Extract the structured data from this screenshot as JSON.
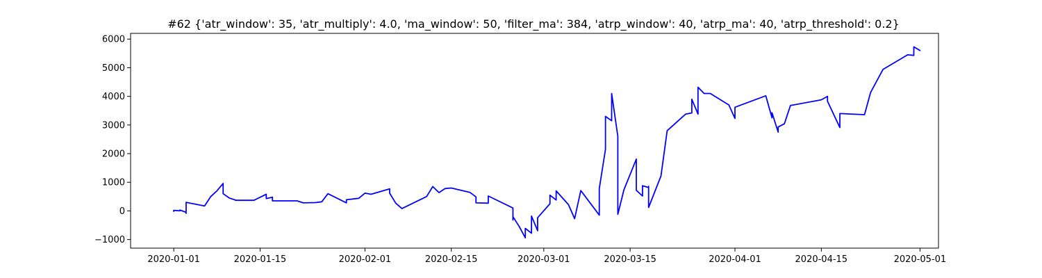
{
  "chart_data": {
    "type": "line",
    "title": "#62 {'atr_window': 35, 'atr_multiply': 4.0, 'ma_window': 50, 'filter_ma': 384, 'atrp_window': 40, 'atrp_ma': 40, 'atrp_threshold': 0.2}",
    "xlabel": "",
    "ylabel": "",
    "xlim": [
      "2019-12-25",
      "2020-05-04"
    ],
    "ylim": [
      -1300,
      6200
    ],
    "grid": false,
    "color": "#0000ff",
    "xticks": [
      "2020-01-01",
      "2020-01-15",
      "2020-02-01",
      "2020-02-15",
      "2020-03-01",
      "2020-03-15",
      "2020-04-01",
      "2020-04-15",
      "2020-05-01"
    ],
    "yticks": [
      -1000,
      0,
      1000,
      2000,
      3000,
      4000,
      5000,
      6000
    ],
    "ytick_labels": [
      "−1000",
      "0",
      "1000",
      "2000",
      "3000",
      "4000",
      "5000",
      "6000"
    ],
    "series": [
      {
        "points": [
          [
            "2020-01-01",
            -30
          ],
          [
            "2020-01-01",
            20
          ],
          [
            "2020-01-02",
            0
          ],
          [
            "2020-01-02",
            30
          ],
          [
            "2020-01-03",
            -50
          ],
          [
            "2020-01-03",
            20
          ],
          [
            "2020-01-03",
            -90
          ],
          [
            "2020-01-03",
            300
          ],
          [
            "2020-01-06",
            170
          ],
          [
            "2020-01-07",
            500
          ],
          [
            "2020-01-08",
            700
          ],
          [
            "2020-01-09",
            960
          ],
          [
            "2020-01-09",
            600
          ],
          [
            "2020-01-10",
            450
          ],
          [
            "2020-01-11",
            380
          ],
          [
            "2020-01-11",
            370
          ],
          [
            "2020-01-14",
            370
          ],
          [
            "2020-01-16",
            580
          ],
          [
            "2020-01-16",
            430
          ],
          [
            "2020-01-17",
            480
          ],
          [
            "2020-01-17",
            350
          ],
          [
            "2020-01-21",
            350
          ],
          [
            "2020-01-22",
            280
          ],
          [
            "2020-01-24",
            290
          ],
          [
            "2020-01-25",
            320
          ],
          [
            "2020-01-26",
            600
          ],
          [
            "2020-01-29",
            280
          ],
          [
            "2020-01-29",
            390
          ],
          [
            "2020-01-31",
            440
          ],
          [
            "2020-02-01",
            620
          ],
          [
            "2020-02-02",
            580
          ],
          [
            "2020-02-05",
            770
          ],
          [
            "2020-02-05",
            620
          ],
          [
            "2020-02-06",
            270
          ],
          [
            "2020-02-07",
            80
          ],
          [
            "2020-02-11",
            500
          ],
          [
            "2020-02-12",
            850
          ],
          [
            "2020-02-13",
            640
          ],
          [
            "2020-02-14",
            780
          ],
          [
            "2020-02-15",
            800
          ],
          [
            "2020-02-18",
            650
          ],
          [
            "2020-02-19",
            490
          ],
          [
            "2020-02-19",
            280
          ],
          [
            "2020-02-21",
            270
          ],
          [
            "2020-02-21",
            520
          ],
          [
            "2020-02-25",
            100
          ],
          [
            "2020-02-25",
            -320
          ],
          [
            "2020-02-25",
            -200
          ],
          [
            "2020-02-26",
            -540
          ],
          [
            "2020-02-27",
            -940
          ],
          [
            "2020-02-27",
            -610
          ],
          [
            "2020-02-28",
            -780
          ],
          [
            "2020-02-28",
            -180
          ],
          [
            "2020-02-29",
            -690
          ],
          [
            "2020-02-29",
            -240
          ],
          [
            "2020-03-02",
            250
          ],
          [
            "2020-03-02",
            550
          ],
          [
            "2020-03-03",
            380
          ],
          [
            "2020-03-03",
            700
          ],
          [
            "2020-03-05",
            220
          ],
          [
            "2020-03-06",
            -270
          ],
          [
            "2020-03-07",
            710
          ],
          [
            "2020-03-10",
            -150
          ],
          [
            "2020-03-10",
            780
          ],
          [
            "2020-03-11",
            2150
          ],
          [
            "2020-03-11",
            3300
          ],
          [
            "2020-03-12",
            3150
          ],
          [
            "2020-03-12",
            4100
          ],
          [
            "2020-03-13",
            2600
          ],
          [
            "2020-03-13",
            1500
          ],
          [
            "2020-03-13",
            -120
          ],
          [
            "2020-03-14",
            740
          ],
          [
            "2020-03-16",
            1810
          ],
          [
            "2020-03-16",
            720
          ],
          [
            "2020-03-17",
            520
          ],
          [
            "2020-03-17",
            880
          ],
          [
            "2020-03-18",
            820
          ],
          [
            "2020-03-18",
            860
          ],
          [
            "2020-03-18",
            120
          ],
          [
            "2020-03-20",
            1220
          ],
          [
            "2020-03-21",
            2800
          ],
          [
            "2020-03-24",
            3380
          ],
          [
            "2020-03-25",
            3420
          ],
          [
            "2020-03-25",
            3900
          ],
          [
            "2020-03-26",
            3380
          ],
          [
            "2020-03-26",
            4320
          ],
          [
            "2020-03-27",
            4100
          ],
          [
            "2020-03-28",
            4100
          ],
          [
            "2020-03-31",
            3700
          ],
          [
            "2020-04-01",
            3230
          ],
          [
            "2020-04-01",
            3620
          ],
          [
            "2020-04-06",
            4020
          ],
          [
            "2020-04-07",
            3250
          ],
          [
            "2020-04-07",
            3430
          ],
          [
            "2020-04-08",
            2750
          ],
          [
            "2020-04-08",
            2930
          ],
          [
            "2020-04-09",
            3040
          ],
          [
            "2020-04-10",
            3680
          ],
          [
            "2020-04-15",
            3880
          ],
          [
            "2020-04-16",
            4000
          ],
          [
            "2020-04-16",
            3830
          ],
          [
            "2020-04-18",
            2910
          ],
          [
            "2020-04-18",
            3400
          ],
          [
            "2020-04-22",
            3360
          ],
          [
            "2020-04-23",
            4140
          ],
          [
            "2020-04-25",
            4940
          ],
          [
            "2020-04-29",
            5450
          ],
          [
            "2020-04-30",
            5430
          ],
          [
            "2020-04-30",
            5730
          ],
          [
            "2020-05-01",
            5600
          ],
          [
            "2020-05-01",
            5580
          ]
        ]
      }
    ]
  }
}
